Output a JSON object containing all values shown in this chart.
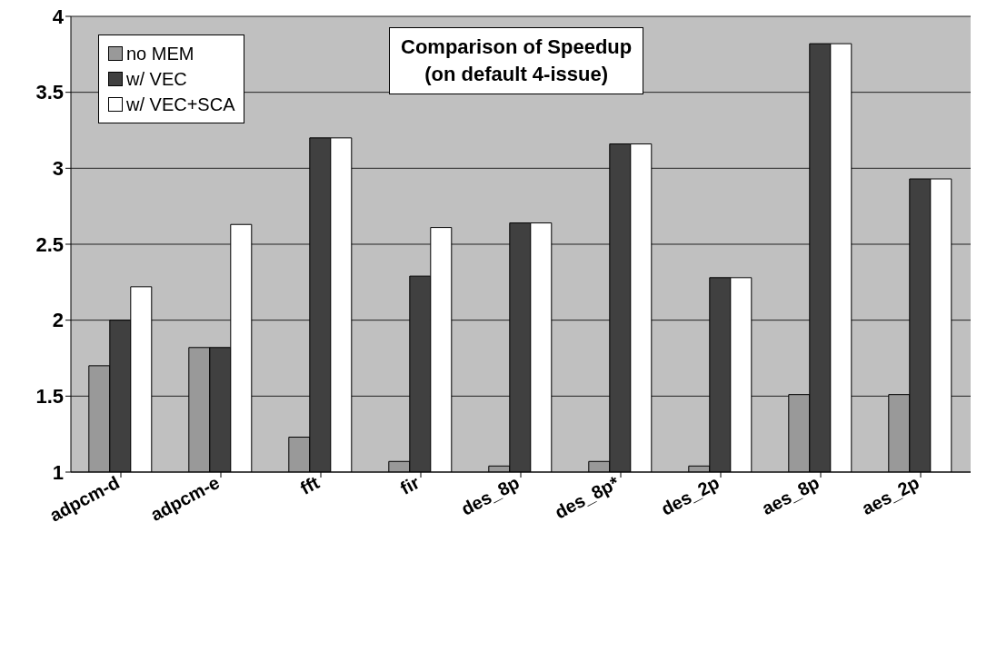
{
  "chart_data": {
    "type": "bar",
    "title": "Comparison of Speedup",
    "subtitle": "(on default 4-issue)",
    "categories": [
      "adpcm-d",
      "adpcm-e",
      "fft",
      "fir",
      "des_8p",
      "des_8p*",
      "des_2p",
      "aes_8p",
      "aes_2p"
    ],
    "series": [
      {
        "name": "no MEM",
        "color": "#999999",
        "values": [
          1.7,
          1.82,
          1.23,
          1.07,
          1.04,
          1.07,
          1.04,
          1.51,
          1.51
        ]
      },
      {
        "name": "w/ VEC",
        "color": "#404040",
        "values": [
          2.0,
          1.82,
          3.2,
          2.29,
          2.64,
          3.16,
          2.28,
          3.82,
          2.93
        ]
      },
      {
        "name": "w/ VEC+SCA",
        "color": "#ffffff",
        "values": [
          2.22,
          2.63,
          3.2,
          2.61,
          2.64,
          3.16,
          2.28,
          3.82,
          2.93
        ]
      }
    ],
    "ylim": [
      1,
      4
    ],
    "yticks": [
      1,
      1.5,
      2,
      2.5,
      3,
      3.5,
      4
    ],
    "grid": "y",
    "legend": "top left"
  }
}
